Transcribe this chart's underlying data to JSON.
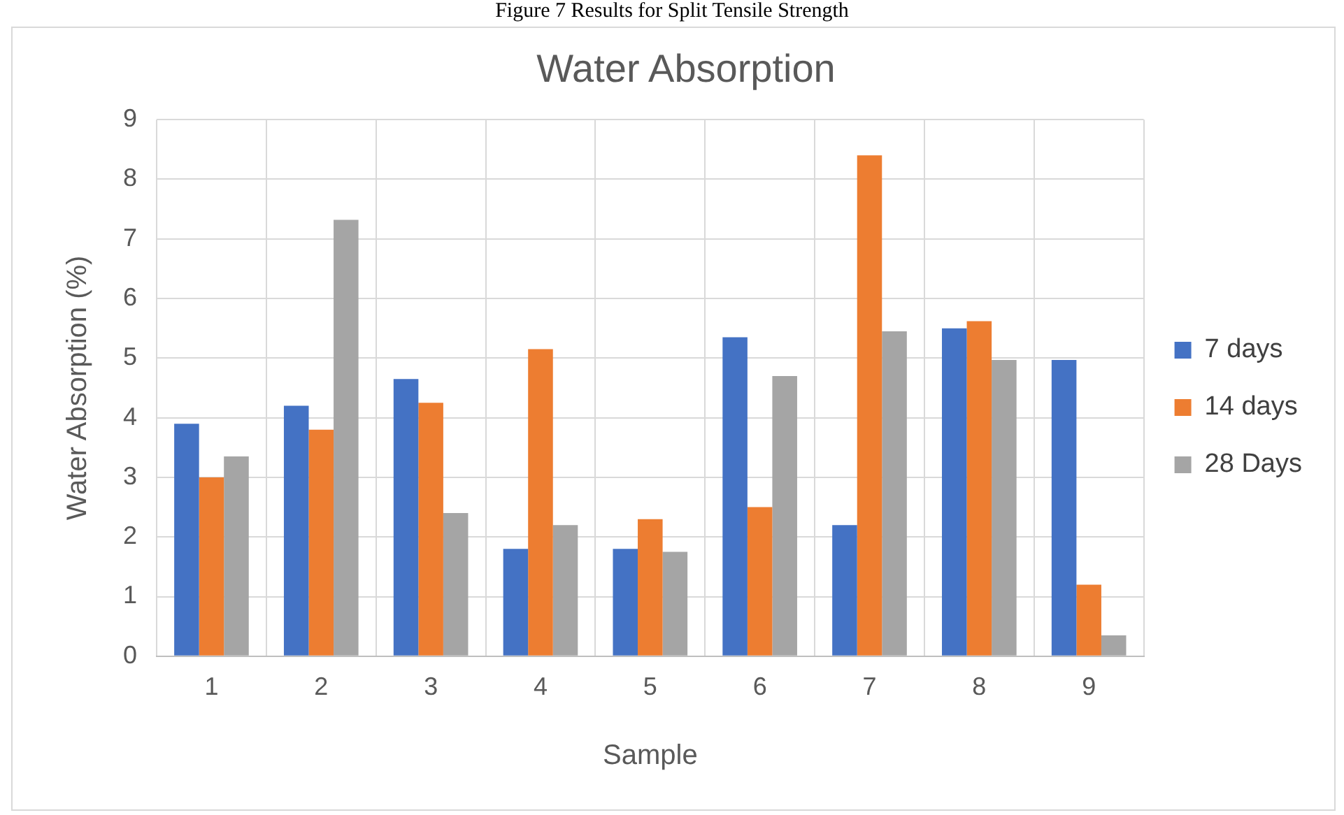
{
  "chart_data": {
    "type": "bar",
    "title": "Water Absorption",
    "xlabel": "Sample",
    "ylabel": "Water Absorption (%)",
    "annotations": [
      "Figure 7 Results for Split Tensile Strength"
    ],
    "categories": [
      "1",
      "2",
      "3",
      "4",
      "5",
      "6",
      "7",
      "8",
      "9"
    ],
    "series": [
      {
        "name": "7 days",
        "color": "#4472c4",
        "values": [
          3.9,
          4.2,
          4.65,
          1.8,
          1.8,
          5.35,
          2.2,
          5.5,
          4.97
        ]
      },
      {
        "name": "14 days",
        "color": "#ed7d31",
        "values": [
          3.0,
          3.8,
          4.25,
          5.15,
          2.3,
          2.5,
          8.4,
          5.62,
          1.2
        ]
      },
      {
        "name": "28 Days",
        "color": "#a5a5a5",
        "values": [
          3.35,
          7.32,
          2.4,
          2.2,
          1.75,
          4.7,
          5.45,
          4.97,
          0.35
        ]
      }
    ],
    "ylim": [
      0,
      9
    ],
    "yticks": [
      0,
      1,
      2,
      3,
      4,
      5,
      6,
      7,
      8,
      9
    ],
    "grid": true,
    "legend": "right"
  }
}
